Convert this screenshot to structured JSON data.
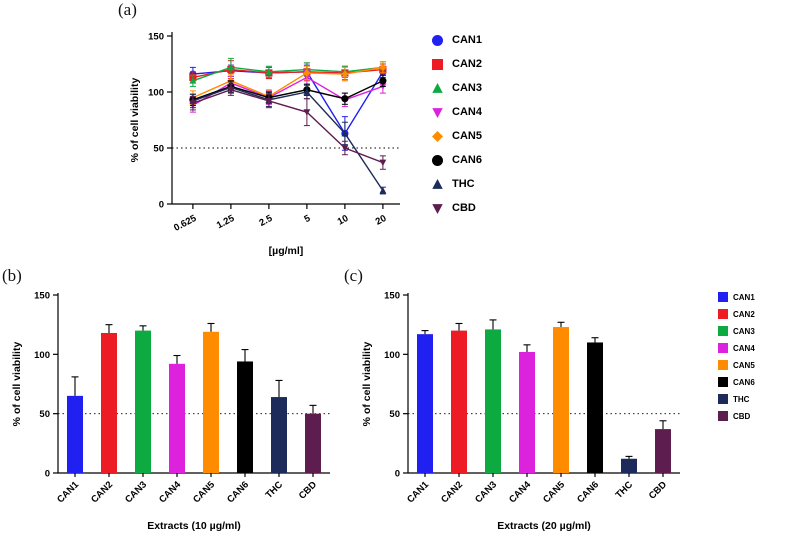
{
  "figure": {
    "panel_a_label": "(a)",
    "panel_b_label": "(b)",
    "panel_c_label": "(c)"
  },
  "legend": {
    "items": [
      {
        "label": "CAN1",
        "color": "#2020f0",
        "marker": "circle"
      },
      {
        "label": "CAN2",
        "color": "#ed1c24",
        "marker": "square"
      },
      {
        "label": "CAN3",
        "color": "#0caa41",
        "marker": "triangle-up"
      },
      {
        "label": "CAN4",
        "color": "#dd22dd",
        "marker": "triangle-down"
      },
      {
        "label": "CAN5",
        "color": "#ff8c00",
        "marker": "diamond"
      },
      {
        "label": "CAN6",
        "color": "#000000",
        "marker": "circle"
      },
      {
        "label": "THC",
        "color": "#1c2b5a",
        "marker": "triangle-up"
      },
      {
        "label": "CBD",
        "color": "#5e1d4f",
        "marker": "triangle-down"
      }
    ]
  },
  "chart_data": [
    {
      "type": "line",
      "panel": "a",
      "x_tick_labels": [
        "0.625",
        "1.25",
        "2.5",
        "5",
        "10",
        "20"
      ],
      "xlabel": "[µg/ml]",
      "ylabel": "% of cell viability",
      "ylim": [
        0,
        150
      ],
      "yticks": [
        0,
        50,
        100,
        150
      ],
      "reference_line_y": 50,
      "legend_position": "right",
      "series": [
        {
          "name": "CAN1",
          "color": "#2020f0",
          "marker": "circle",
          "values": [
            116,
            119,
            117,
            118,
            63,
            118
          ],
          "errors": [
            6,
            5,
            5,
            6,
            15,
            5
          ]
        },
        {
          "name": "CAN2",
          "color": "#ed1c24",
          "marker": "square",
          "values": [
            113,
            120,
            117,
            118,
            117,
            120
          ],
          "errors": [
            5,
            8,
            5,
            8,
            6,
            5
          ]
        },
        {
          "name": "CAN3",
          "color": "#0caa41",
          "marker": "triangle-up",
          "values": [
            110,
            122,
            118,
            120,
            118,
            122
          ],
          "errors": [
            5,
            8,
            5,
            6,
            5,
            5
          ]
        },
        {
          "name": "CAN4",
          "color": "#dd22dd",
          "marker": "triangle-down",
          "values": [
            88,
            108,
            95,
            113,
            93,
            105
          ],
          "errors": [
            6,
            6,
            6,
            6,
            6,
            6
          ]
        },
        {
          "name": "CAN5",
          "color": "#ff8c00",
          "marker": "diamond",
          "values": [
            95,
            110,
            96,
            117,
            116,
            122
          ],
          "errors": [
            6,
            6,
            6,
            6,
            6,
            5
          ]
        },
        {
          "name": "CAN6",
          "color": "#000000",
          "marker": "circle",
          "values": [
            93,
            105,
            95,
            102,
            94,
            110
          ],
          "errors": [
            5,
            5,
            5,
            5,
            5,
            5
          ]
        },
        {
          "name": "THC",
          "color": "#1c2b5a",
          "marker": "triangle-up",
          "values": [
            92,
            104,
            93,
            100,
            63,
            12
          ],
          "errors": [
            6,
            5,
            6,
            6,
            10,
            3
          ]
        },
        {
          "name": "CBD",
          "color": "#5e1d4f",
          "marker": "triangle-down",
          "values": [
            90,
            102,
            92,
            82,
            50,
            37
          ],
          "errors": [
            6,
            5,
            6,
            12,
            6,
            6
          ]
        }
      ]
    },
    {
      "type": "bar",
      "panel": "b",
      "categories": [
        "CAN1",
        "CAN2",
        "CAN3",
        "CAN4",
        "CAN5",
        "CAN6",
        "THC",
        "CBD"
      ],
      "values": [
        65,
        118,
        120,
        92,
        119,
        94,
        64,
        50
      ],
      "errors": [
        16,
        7,
        4,
        7,
        7,
        10,
        14,
        7
      ],
      "bar_colors": [
        "#2020f0",
        "#ed1c24",
        "#0caa41",
        "#dd22dd",
        "#ff8c00",
        "#000000",
        "#1c2b5a",
        "#5e1d4f"
      ],
      "xlabel": "Extracts (10 µg/ml)",
      "ylabel": "% of cell viability",
      "ylim": [
        0,
        150
      ],
      "yticks": [
        0,
        50,
        100,
        150
      ],
      "reference_line_y": 50
    },
    {
      "type": "bar",
      "panel": "c",
      "categories": [
        "CAN1",
        "CAN2",
        "CAN3",
        "CAN4",
        "CAN5",
        "CAN6",
        "THC",
        "CBD"
      ],
      "values": [
        117,
        120,
        121,
        102,
        123,
        110,
        12,
        37
      ],
      "errors": [
        3,
        6,
        8,
        6,
        4,
        4,
        2,
        7
      ],
      "bar_colors": [
        "#2020f0",
        "#ed1c24",
        "#0caa41",
        "#dd22dd",
        "#ff8c00",
        "#000000",
        "#1c2b5a",
        "#5e1d4f"
      ],
      "xlabel": "Extracts (20 µg/ml)",
      "ylabel": "% of cell viability",
      "ylim": [
        0,
        150
      ],
      "yticks": [
        0,
        50,
        100,
        150
      ],
      "reference_line_y": 50
    }
  ]
}
